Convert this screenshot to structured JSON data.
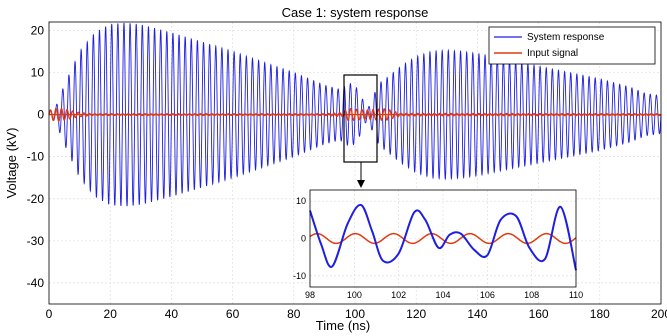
{
  "chart_data": [
    {
      "type": "line",
      "title": "Case 1: system response",
      "xlabel": "Time (ns)",
      "ylabel": "Voltage (kV)",
      "xlim": [
        0,
        200
      ],
      "ylim": [
        -45,
        22
      ],
      "xticks": [
        0,
        20,
        40,
        60,
        80,
        100,
        120,
        140,
        160,
        180,
        200
      ],
      "yticks": [
        -40,
        -30,
        -20,
        -10,
        0,
        10,
        20
      ],
      "grid": true,
      "legend_position": "top-right",
      "series": [
        {
          "name": "System response",
          "color": "#1f1fe0",
          "description": "oscillation with frequency ~0.5 per ns; envelope amplitude in kV vs time",
          "envelope": {
            "t": [
              0,
              2,
              5,
              10,
              15,
              20,
              25,
              30,
              40,
              50,
              60,
              70,
              80,
              90,
              95,
              98,
              100,
              102,
              104,
              106,
              108,
              110,
              115,
              120,
              125,
              130,
              135,
              140,
              150,
              160,
              170,
              180,
              190,
              195,
              200
            ],
            "amplitude": [
              1,
              1.5,
              7,
              15,
              19.5,
              21.5,
              21.8,
              21.4,
              19.5,
              17.3,
              15,
              12.5,
              10,
              7,
              6,
              7.5,
              7,
              4.5,
              1,
              4.5,
              7.5,
              8.5,
              11.5,
              13.8,
              15,
              15.3,
              15,
              14.5,
              13,
              11.5,
              10,
              8.5,
              6.5,
              5,
              4.5
            ]
          }
        },
        {
          "name": "Input signal",
          "color": "#e03a10",
          "description": "small oscillation near zero; envelope amplitude in kV",
          "envelope": {
            "t": [
              0,
              1,
              3,
              6,
              9,
              14,
              90,
              96,
              98,
              100,
              102,
              104,
              106,
              108,
              110,
              115,
              200
            ],
            "amplitude": [
              0.8,
              1.3,
              1.6,
              1.2,
              0.6,
              0.2,
              0.2,
              0.5,
              1.5,
              1.3,
              1.2,
              1.1,
              1.2,
              1.3,
              1.4,
              0.3,
              0.2
            ]
          }
        }
      ]
    },
    {
      "type": "line",
      "title": "",
      "role": "inset zoom of 98–110 ns",
      "xlim": [
        98,
        110
      ],
      "ylim": [
        -13,
        13
      ],
      "xticks": [
        98,
        100,
        102,
        104,
        106,
        108,
        110
      ],
      "yticks": [
        -10,
        0,
        10
      ],
      "grid": true,
      "series": [
        {
          "name": "System response",
          "color": "#1f1fe0",
          "points": {
            "t": [
              98.0,
              98.5,
              99.0,
              99.7,
              100.3,
              100.8,
              101.3,
              102.0,
              102.7,
              103.2,
              103.8,
              104.3,
              104.8,
              105.4,
              106.0,
              106.6,
              107.3,
              107.9,
              108.6,
              109.3,
              110.0
            ],
            "v": [
              7.5,
              -1.5,
              -7.5,
              4,
              9,
              2,
              -6,
              -4,
              7,
              5,
              -2.5,
              1,
              1.3,
              -3,
              -4.5,
              5,
              6,
              -2.5,
              -5.5,
              8.5,
              -8.5
            ]
          }
        },
        {
          "name": "Input signal",
          "color": "#e03a10",
          "description": "small oscillation about zero, amplitude ~1.3 kV",
          "amplitude": 1.3
        }
      ]
    }
  ]
}
